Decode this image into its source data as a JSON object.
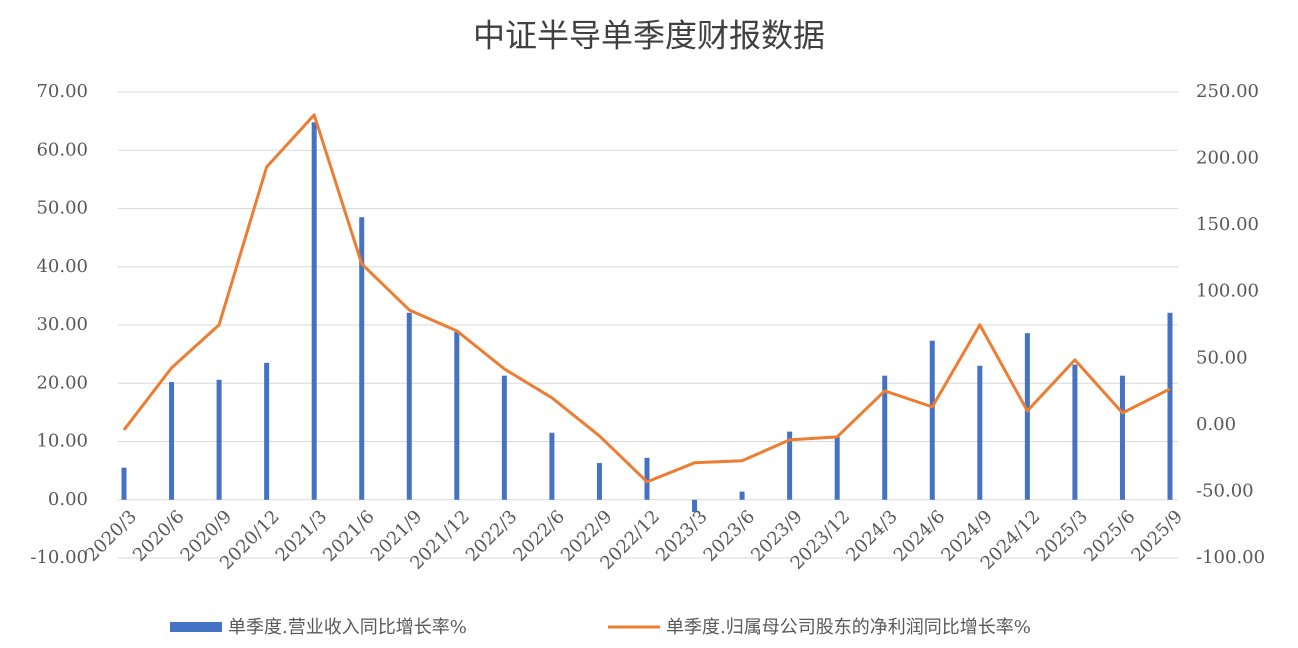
{
  "chart_data": {
    "type": "bar-line",
    "title": "中证半导单季度财报数据",
    "categories": [
      "2020/3",
      "2020/6",
      "2020/9",
      "2020/12",
      "2021/3",
      "2021/6",
      "2021/9",
      "2021/12",
      "2022/3",
      "2022/6",
      "2022/9",
      "2022/12",
      "2023/3",
      "2023/6",
      "2023/9",
      "2023/12",
      "2024/3",
      "2024/6",
      "2024/9",
      "2024/12",
      "2025/3",
      "2025/6",
      "2025/9"
    ],
    "series": [
      {
        "name": "单季度.营业收入同比增长率%",
        "type": "bar",
        "color": "#4472c4",
        "values": [
          5.5,
          20.2,
          20.6,
          23.5,
          64.8,
          48.5,
          32.1,
          28.8,
          21.3,
          11.5,
          6.3,
          7.2,
          -2.1,
          1.4,
          11.7,
          10.8,
          21.3,
          27.3,
          23.0,
          28.6,
          23.2,
          21.3,
          32.1
        ]
      },
      {
        "name": "单季度.归属母公司股东的净利润同比增长率%",
        "type": "line",
        "axis": "y2",
        "color": "#ed7d31",
        "values": [
          -3.8,
          42.8,
          75.1,
          193.7,
          232.8,
          120.9,
          86.3,
          70.6,
          42.0,
          20.3,
          -8.3,
          -42.8,
          -28.5,
          -27.0,
          -11.3,
          -9.0,
          25.5,
          13.5,
          75.1,
          10.5,
          48.8,
          9.0,
          27.0
        ]
      }
    ],
    "ylim": [
      -10,
      70
    ],
    "yticks": [
      {
        "value": -10,
        "label": "-10.00"
      },
      {
        "value": 0,
        "label": "0.00"
      },
      {
        "value": 10,
        "label": "10.00"
      },
      {
        "value": 20,
        "label": "20.00"
      },
      {
        "value": 30,
        "label": "30.00"
      },
      {
        "value": 40,
        "label": "40.00"
      },
      {
        "value": 50,
        "label": "50.00"
      },
      {
        "value": 60,
        "label": "60.00"
      },
      {
        "value": 70,
        "label": "70.00"
      }
    ],
    "y2lim": [
      -100,
      250
    ],
    "y2ticks": [
      {
        "value": -100,
        "label": "-100.00"
      },
      {
        "value": -50,
        "label": "-50.00"
      },
      {
        "value": 0,
        "label": "0.00"
      },
      {
        "value": 50,
        "label": "50.00"
      },
      {
        "value": 100,
        "label": "100.00"
      },
      {
        "value": 150,
        "label": "150.00"
      },
      {
        "value": 200,
        "label": "200.00"
      },
      {
        "value": 250,
        "label": "250.00"
      }
    ],
    "grid": true,
    "legend": "bottom"
  }
}
